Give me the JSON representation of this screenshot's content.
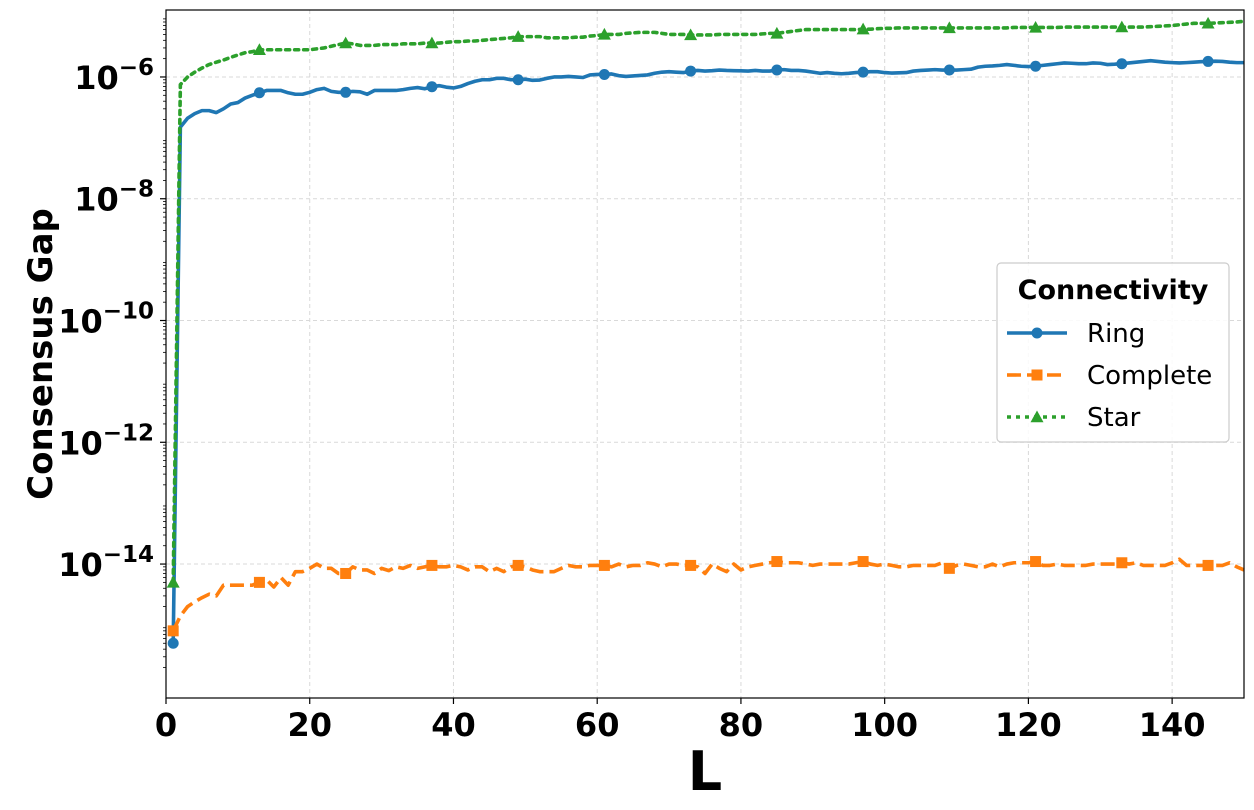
{
  "chart_data": {
    "type": "line",
    "xlabel": "L",
    "ylabel": "Consensus Gap",
    "y_scale": "log",
    "xlim": [
      0,
      150
    ],
    "ylim_exponent": [
      -16.2,
      -4.9
    ],
    "x_ticks": [
      0,
      20,
      40,
      60,
      80,
      100,
      120,
      140
    ],
    "y_tick_exponents": [
      -14,
      -12,
      -10,
      -8,
      -6
    ],
    "y_tick_base": "10",
    "grid": true,
    "legend": {
      "title": "Connectivity",
      "position": "right"
    },
    "series": [
      {
        "name": "Ring",
        "color": "#1f77b4",
        "line_style": "solid",
        "marker": "circle",
        "x": [
          1,
          2,
          3,
          4,
          5,
          6,
          7,
          8,
          9,
          10,
          11,
          12,
          13,
          14,
          15,
          16,
          17,
          18,
          19,
          20,
          21,
          22,
          23,
          24,
          25,
          26,
          27,
          28,
          29,
          30,
          31,
          32,
          33,
          34,
          35,
          36,
          37,
          38,
          39,
          40,
          41,
          42,
          43,
          44,
          45,
          46,
          47,
          48,
          49,
          50,
          51,
          52,
          53,
          54,
          55,
          56,
          57,
          58,
          59,
          60,
          61,
          62,
          63,
          64,
          65,
          66,
          67,
          68,
          69,
          70,
          71,
          72,
          73,
          74,
          75,
          76,
          77,
          78,
          79,
          80,
          81,
          82,
          83,
          84,
          85,
          86,
          87,
          88,
          89,
          90,
          91,
          92,
          93,
          94,
          95,
          96,
          97,
          98,
          99,
          100,
          101,
          102,
          103,
          104,
          105,
          106,
          107,
          108,
          109,
          110,
          111,
          112,
          113,
          114,
          115,
          116,
          117,
          118,
          119,
          120,
          121,
          122,
          123,
          124,
          125,
          126,
          127,
          128,
          129,
          130,
          131,
          132,
          133,
          134,
          135,
          136,
          137,
          138,
          139,
          140,
          141,
          142,
          143,
          144,
          145,
          146,
          147,
          148,
          149,
          150
        ],
        "y": [
          5e-16,
          1.5e-07,
          2.1e-07,
          2.5e-07,
          2.8e-07,
          2.8e-07,
          2.6e-07,
          3e-07,
          3.6e-07,
          3.8e-07,
          4.5e-07,
          5e-07,
          5.5e-07,
          6e-07,
          6e-07,
          6e-07,
          5.5e-07,
          5.2e-07,
          5.2e-07,
          5.6e-07,
          6.2e-07,
          6.5e-07,
          5.8e-07,
          5.6e-07,
          5.6e-07,
          5.8e-07,
          5.7e-07,
          5.2e-07,
          6e-07,
          6e-07,
          6e-07,
          6e-07,
          6.2e-07,
          6.5e-07,
          6.7e-07,
          6.4e-07,
          6.9e-07,
          7.2e-07,
          6.8e-07,
          6.6e-07,
          7e-07,
          7.8e-07,
          8.5e-07,
          9e-07,
          9e-07,
          9.5e-07,
          9.5e-07,
          9e-07,
          9e-07,
          9.2e-07,
          8.8e-07,
          8.9e-07,
          9.5e-07,
          1e-06,
          1e-06,
          1.02e-06,
          1e-06,
          9.8e-07,
          1.08e-06,
          1.1e-06,
          1.1e-06,
          1.12e-06,
          1.05e-06,
          1.02e-06,
          1.04e-06,
          1.06e-06,
          1.08e-06,
          1.15e-06,
          1.2e-06,
          1.22e-06,
          1.2e-06,
          1.18e-06,
          1.25e-06,
          1.28e-06,
          1.25e-06,
          1.27e-06,
          1.3e-06,
          1.28e-06,
          1.27e-06,
          1.26e-06,
          1.25e-06,
          1.28e-06,
          1.25e-06,
          1.25e-06,
          1.3e-06,
          1.32e-06,
          1.28e-06,
          1.28e-06,
          1.25e-06,
          1.2e-06,
          1.15e-06,
          1.18e-06,
          1.15e-06,
          1.13e-06,
          1.15e-06,
          1.18e-06,
          1.2e-06,
          1.22e-06,
          1.22e-06,
          1.18e-06,
          1.16e-06,
          1.17e-06,
          1.18e-06,
          1.25e-06,
          1.28e-06,
          1.3e-06,
          1.32e-06,
          1.3e-06,
          1.3e-06,
          1.3e-06,
          1.32e-06,
          1.34e-06,
          1.45e-06,
          1.5e-06,
          1.52e-06,
          1.55e-06,
          1.6e-06,
          1.55e-06,
          1.5e-06,
          1.48e-06,
          1.5e-06,
          1.55e-06,
          1.6e-06,
          1.65e-06,
          1.7e-06,
          1.68e-06,
          1.65e-06,
          1.65e-06,
          1.7e-06,
          1.68e-06,
          1.6e-06,
          1.62e-06,
          1.65e-06,
          1.7e-06,
          1.75e-06,
          1.8e-06,
          1.85e-06,
          1.8e-06,
          1.75e-06,
          1.72e-06,
          1.7e-06,
          1.72e-06,
          1.75e-06,
          1.78e-06,
          1.8e-06,
          1.82e-06,
          1.8e-06,
          1.75e-06,
          1.72e-06,
          1.72e-06
        ]
      },
      {
        "name": "Complete",
        "color": "#ff7f0e",
        "line_style": "dashed",
        "marker": "square",
        "x": [
          1,
          2,
          3,
          4,
          5,
          6,
          7,
          8,
          9,
          10,
          11,
          12,
          13,
          14,
          15,
          16,
          17,
          18,
          19,
          20,
          21,
          22,
          23,
          24,
          25,
          26,
          27,
          28,
          29,
          30,
          31,
          32,
          33,
          34,
          35,
          36,
          37,
          38,
          39,
          40,
          41,
          42,
          43,
          44,
          45,
          46,
          47,
          48,
          49,
          50,
          51,
          52,
          53,
          54,
          55,
          56,
          57,
          58,
          59,
          60,
          61,
          62,
          63,
          64,
          65,
          66,
          67,
          68,
          69,
          70,
          71,
          72,
          73,
          74,
          75,
          76,
          77,
          78,
          79,
          80,
          81,
          82,
          83,
          84,
          85,
          86,
          87,
          88,
          89,
          90,
          91,
          92,
          93,
          94,
          95,
          96,
          97,
          98,
          99,
          100,
          101,
          102,
          103,
          104,
          105,
          106,
          107,
          108,
          109,
          110,
          111,
          112,
          113,
          114,
          115,
          116,
          117,
          118,
          119,
          120,
          121,
          122,
          123,
          124,
          125,
          126,
          127,
          128,
          129,
          130,
          131,
          132,
          133,
          134,
          135,
          136,
          137,
          138,
          139,
          140,
          141,
          142,
          143,
          144,
          145,
          146,
          147,
          148,
          149,
          150
        ],
        "y": [
          8e-16,
          1.4e-15,
          2e-15,
          2.4e-15,
          2.8e-15,
          3.2e-15,
          3e-15,
          4.5e-15,
          4.5e-15,
          4.5e-15,
          4.5e-15,
          4.5e-15,
          5e-15,
          5.5e-15,
          4.2e-15,
          6e-15,
          4.5e-15,
          7.5e-15,
          7.5e-15,
          8.5e-15,
          1e-14,
          8.5e-15,
          8.5e-15,
          7e-15,
          7e-15,
          9e-15,
          8e-15,
          8e-15,
          7e-15,
          8.5e-15,
          7.8e-15,
          9e-15,
          8.5e-15,
          9.5e-15,
          8.5e-15,
          9e-15,
          9.5e-15,
          9e-15,
          9e-15,
          9.5e-15,
          9e-15,
          8e-15,
          9e-15,
          9e-15,
          7.5e-15,
          8.5e-15,
          7.5e-15,
          9e-15,
          9.5e-15,
          9e-15,
          8e-15,
          7.5e-15,
          7.5e-15,
          7.5e-15,
          8.5e-15,
          9.5e-15,
          9e-15,
          9e-15,
          9.5e-15,
          9.5e-15,
          9.5e-15,
          9e-15,
          1e-14,
          9e-15,
          9.5e-15,
          9.5e-15,
          1.05e-14,
          1e-14,
          9e-15,
          1e-14,
          1e-14,
          9.5e-15,
          9.5e-15,
          9e-15,
          7e-15,
          1e-14,
          8.5e-15,
          7.5e-15,
          1e-14,
          8e-15,
          9e-15,
          9.5e-15,
          1e-14,
          1.05e-14,
          1.1e-14,
          1.05e-14,
          1.05e-14,
          1.05e-14,
          1e-14,
          9.5e-15,
          1e-14,
          1e-14,
          1e-14,
          1e-14,
          1e-14,
          1.05e-14,
          1.1e-14,
          1e-14,
          9.5e-15,
          1e-14,
          9.5e-15,
          9e-15,
          9e-15,
          9.5e-15,
          9.5e-15,
          9.5e-15,
          9.5e-15,
          1.05e-14,
          8.5e-15,
          9.5e-15,
          1e-14,
          9.5e-15,
          9e-15,
          9e-15,
          1e-14,
          9e-15,
          1e-14,
          1.05e-14,
          1.05e-14,
          1.05e-14,
          1.1e-14,
          9.5e-15,
          9.5e-15,
          1e-14,
          9.5e-15,
          9.5e-15,
          9.5e-15,
          9.5e-15,
          1e-14,
          1e-14,
          1e-14,
          1e-14,
          1.05e-14,
          1e-14,
          1.05e-14,
          9.5e-15,
          9.5e-15,
          9.5e-15,
          9.5e-15,
          1.05e-14,
          1.2e-14,
          9.5e-15,
          9.5e-15,
          9.5e-15,
          9.5e-15,
          9.5e-15,
          9.5e-15,
          1.05e-14,
          9e-15,
          8e-15
        ]
      },
      {
        "name": "Star",
        "color": "#2ca02c",
        "line_style": "dotted",
        "marker": "triangle",
        "x": [
          1,
          2,
          3,
          4,
          5,
          6,
          7,
          8,
          9,
          10,
          11,
          12,
          13,
          14,
          15,
          16,
          17,
          18,
          19,
          20,
          21,
          22,
          23,
          24,
          25,
          26,
          27,
          28,
          29,
          30,
          31,
          32,
          33,
          34,
          35,
          36,
          37,
          38,
          39,
          40,
          41,
          42,
          43,
          44,
          45,
          46,
          47,
          48,
          49,
          50,
          51,
          52,
          53,
          54,
          55,
          56,
          57,
          58,
          59,
          60,
          61,
          62,
          63,
          64,
          65,
          66,
          67,
          68,
          69,
          70,
          71,
          72,
          73,
          74,
          75,
          76,
          77,
          78,
          79,
          80,
          81,
          82,
          83,
          84,
          85,
          86,
          87,
          88,
          89,
          90,
          91,
          92,
          93,
          94,
          95,
          96,
          97,
          98,
          99,
          100,
          101,
          102,
          103,
          104,
          105,
          106,
          107,
          108,
          109,
          110,
          111,
          112,
          113,
          114,
          115,
          116,
          117,
          118,
          119,
          120,
          121,
          122,
          123,
          124,
          125,
          126,
          127,
          128,
          129,
          130,
          131,
          132,
          133,
          134,
          135,
          136,
          137,
          138,
          139,
          140,
          141,
          142,
          143,
          144,
          145,
          146,
          147,
          148,
          149,
          150
        ],
        "y": [
          5e-15,
          7.5e-07,
          1e-06,
          1.2e-06,
          1.4e-06,
          1.6e-06,
          1.75e-06,
          1.9e-06,
          2.1e-06,
          2.3e-06,
          2.5e-06,
          2.6e-06,
          2.8e-06,
          2.8e-06,
          2.8e-06,
          2.8e-06,
          2.8e-06,
          2.8e-06,
          2.8e-06,
          2.8e-06,
          2.9e-06,
          3e-06,
          3.2e-06,
          3.4e-06,
          3.6e-06,
          3.5e-06,
          3.3e-06,
          3.3e-06,
          3.3e-06,
          3.4e-06,
          3.4e-06,
          3.4e-06,
          3.5e-06,
          3.5e-06,
          3.5e-06,
          3.6e-06,
          3.6e-06,
          3.6e-06,
          3.7e-06,
          3.8e-06,
          3.8e-06,
          3.9e-06,
          3.9e-06,
          4e-06,
          4.1e-06,
          4.2e-06,
          4.3e-06,
          4.4e-06,
          4.6e-06,
          4.6e-06,
          4.6e-06,
          4.6e-06,
          4.4e-06,
          4.4e-06,
          4.4e-06,
          4.4e-06,
          4.5e-06,
          4.5e-06,
          4.7e-06,
          4.8e-06,
          5e-06,
          5e-06,
          5e-06,
          5.2e-06,
          5.3e-06,
          5.4e-06,
          5.4e-06,
          5.4e-06,
          5.2e-06,
          5e-06,
          5e-06,
          5e-06,
          4.9e-06,
          4.9e-06,
          4.9e-06,
          4.9e-06,
          5e-06,
          5e-06,
          5e-06,
          5e-06,
          5e-06,
          5e-06,
          5.1e-06,
          5.2e-06,
          5.2e-06,
          5.4e-06,
          5.6e-06,
          5.8e-06,
          6e-06,
          6e-06,
          6e-06,
          6e-06,
          6e-06,
          6e-06,
          6e-06,
          6e-06,
          6.1e-06,
          6.1e-06,
          6.2e-06,
          6.3e-06,
          6.3e-06,
          6.4e-06,
          6.4e-06,
          6.4e-06,
          6.4e-06,
          6.4e-06,
          6.4e-06,
          6.4e-06,
          6.4e-06,
          6.4e-06,
          6.4e-06,
          6.4e-06,
          6.4e-06,
          6.4e-06,
          6.4e-06,
          6.4e-06,
          6.4e-06,
          6.5e-06,
          6.5e-06,
          6.5e-06,
          6.5e-06,
          6.5e-06,
          6.5e-06,
          6.5e-06,
          6.6e-06,
          6.6e-06,
          6.6e-06,
          6.6e-06,
          6.6e-06,
          6.6e-06,
          6.6e-06,
          6.6e-06,
          6.6e-06,
          6.6e-06,
          6.6e-06,
          6.6e-06,
          6.7e-06,
          6.8e-06,
          6.9e-06,
          7e-06,
          7.2e-06,
          7.4e-06,
          7.6e-06,
          7.6e-06,
          7.6e-06,
          7.7e-06,
          7.8e-06,
          7.9e-06,
          8e-06,
          8.2e-06
        ]
      }
    ]
  }
}
